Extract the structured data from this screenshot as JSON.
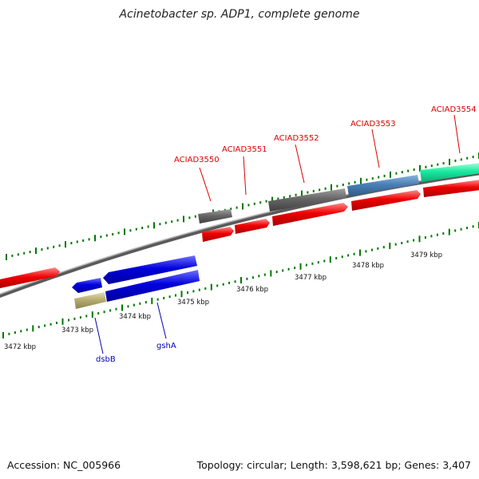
{
  "title": "Acinetobacter sp. ADP1, complete genome",
  "footer": {
    "accession": "Accession: NC_005966",
    "summary": "Topology: circular; Length: 3,598,621 bp; Genes: 3,407"
  },
  "scale_labels": [
    {
      "kbp": 3472,
      "label": "3472 kbp"
    },
    {
      "kbp": 3473,
      "label": "3473 kbp"
    },
    {
      "kbp": 3474,
      "label": "3474 kbp"
    },
    {
      "kbp": 3475,
      "label": "3475 kbp"
    },
    {
      "kbp": 3476,
      "label": "3476 kbp"
    },
    {
      "kbp": 3477,
      "label": "3477 kbp"
    },
    {
      "kbp": 3478,
      "label": "3478 kbp"
    },
    {
      "kbp": 3479,
      "label": "3479 kbp"
    }
  ],
  "gene_labels": [
    {
      "text": "ACIAD3550",
      "color": "#dd0000"
    },
    {
      "text": "ACIAD3551",
      "color": "#dd0000"
    },
    {
      "text": "ACIAD3552",
      "color": "#dd0000"
    },
    {
      "text": "ACIAD3553",
      "color": "#dd0000"
    },
    {
      "text": "ACIAD3554",
      "color": "#dd0000"
    },
    {
      "text": "dsbB",
      "color": "#0000bb"
    },
    {
      "text": "gshA",
      "color": "#0000bb"
    }
  ],
  "feature_colors": {
    "red": "#ee0000",
    "blue": "#0000dd",
    "grey": "#606060",
    "steel": "#4a7fb5",
    "mint": "#19e9a0",
    "olive": "#b7ad72",
    "backbone": "#888888",
    "tick": "#007700"
  }
}
